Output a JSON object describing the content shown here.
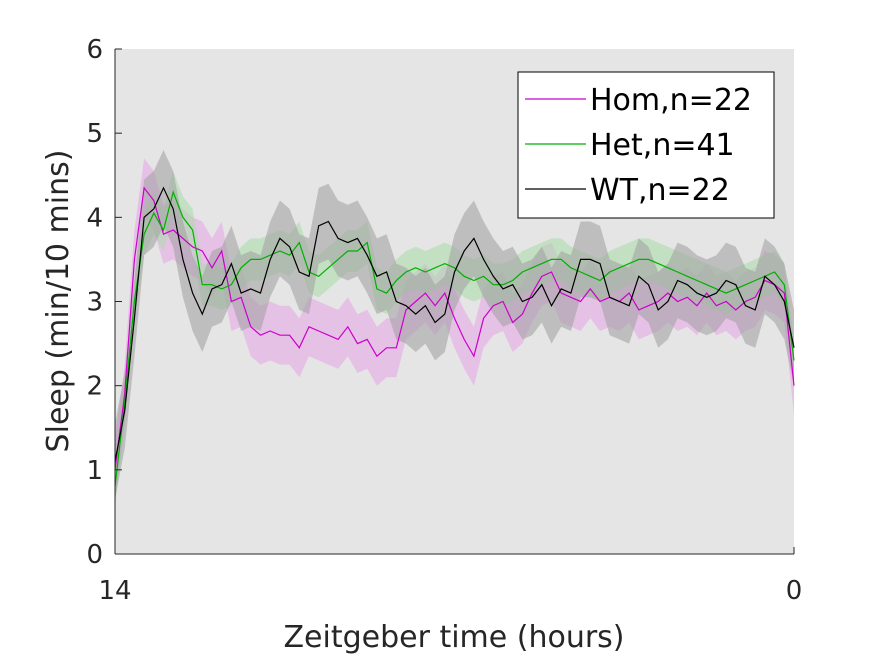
{
  "chart_data": {
    "type": "line",
    "title": "",
    "xlabel": "Zeitgeber time (hours)",
    "ylabel": "Sleep (min/10 mins)",
    "xlim": [
      14,
      0
    ],
    "ylim": [
      0,
      6
    ],
    "x_tick_labels": [
      "14",
      "0"
    ],
    "y_tick_labels": [
      "0",
      "1",
      "2",
      "3",
      "4",
      "5",
      "6"
    ],
    "y_ticks": [
      0,
      1,
      2,
      3,
      4,
      5,
      6
    ],
    "grid": false,
    "legend_position": "top-right",
    "plot_background": "#e5e5e5",
    "series": [
      {
        "name": "Hom,n=22",
        "color": "#cc00cc",
        "band_color": "#e8a4e8",
        "x": [
          14.0,
          13.8,
          13.6,
          13.4,
          13.2,
          13.0,
          12.8,
          12.6,
          12.4,
          12.2,
          12.0,
          11.8,
          11.6,
          11.4,
          11.2,
          11.0,
          10.8,
          10.6,
          10.4,
          10.2,
          10.0,
          9.8,
          9.6,
          9.4,
          9.2,
          9.0,
          8.8,
          8.6,
          8.4,
          8.2,
          8.0,
          7.8,
          7.6,
          7.4,
          7.2,
          7.0,
          6.8,
          6.6,
          6.4,
          6.2,
          6.0,
          5.8,
          5.6,
          5.4,
          5.2,
          5.0,
          4.8,
          4.6,
          4.4,
          4.2,
          4.0,
          3.8,
          3.6,
          3.4,
          3.2,
          3.0,
          2.8,
          2.6,
          2.4,
          2.2,
          2.0,
          1.8,
          1.6,
          1.4,
          1.2,
          1.0,
          0.8,
          0.6,
          0.4,
          0.2,
          0.0
        ],
        "values": [
          1.0,
          1.9,
          3.5,
          4.35,
          4.2,
          3.8,
          3.85,
          3.75,
          3.65,
          3.6,
          3.4,
          3.6,
          3.0,
          3.05,
          2.7,
          2.6,
          2.65,
          2.6,
          2.6,
          2.45,
          2.7,
          2.65,
          2.6,
          2.55,
          2.7,
          2.5,
          2.55,
          2.35,
          2.45,
          2.45,
          2.9,
          3.0,
          3.1,
          2.95,
          3.1,
          2.8,
          2.55,
          2.35,
          2.8,
          2.95,
          3.0,
          2.75,
          2.85,
          3.1,
          3.3,
          3.35,
          3.1,
          3.05,
          3.0,
          3.15,
          3.0,
          3.05,
          3.0,
          3.1,
          2.9,
          2.95,
          3.0,
          3.1,
          3.0,
          3.05,
          2.95,
          3.1,
          2.95,
          3.0,
          2.9,
          3.0,
          3.05,
          3.25,
          3.2,
          3.1,
          2.0
        ],
        "band_halfwidth": 0.35
      },
      {
        "name": "Het,n=41",
        "color": "#00b000",
        "band_color": "#a8dca8",
        "x": [
          14.0,
          13.8,
          13.6,
          13.4,
          13.2,
          13.0,
          12.8,
          12.6,
          12.4,
          12.2,
          12.0,
          11.8,
          11.6,
          11.4,
          11.2,
          11.0,
          10.8,
          10.6,
          10.4,
          10.2,
          10.0,
          9.8,
          9.6,
          9.4,
          9.2,
          9.0,
          8.8,
          8.6,
          8.4,
          8.2,
          8.0,
          7.8,
          7.6,
          7.4,
          7.2,
          7.0,
          6.8,
          6.6,
          6.4,
          6.2,
          6.0,
          5.8,
          5.6,
          5.4,
          5.2,
          5.0,
          4.8,
          4.6,
          4.4,
          4.2,
          4.0,
          3.8,
          3.6,
          3.4,
          3.2,
          3.0,
          2.8,
          2.6,
          2.4,
          2.2,
          2.0,
          1.8,
          1.6,
          1.4,
          1.2,
          1.0,
          0.8,
          0.6,
          0.4,
          0.2,
          0.0
        ],
        "values": [
          0.8,
          1.8,
          3.0,
          3.8,
          4.05,
          3.85,
          4.3,
          4.0,
          3.85,
          3.2,
          3.2,
          3.15,
          3.2,
          3.4,
          3.5,
          3.5,
          3.55,
          3.6,
          3.55,
          3.7,
          3.35,
          3.3,
          3.4,
          3.5,
          3.6,
          3.6,
          3.7,
          3.15,
          3.1,
          3.25,
          3.35,
          3.4,
          3.35,
          3.4,
          3.45,
          3.4,
          3.3,
          3.25,
          3.3,
          3.2,
          3.2,
          3.25,
          3.35,
          3.4,
          3.45,
          3.5,
          3.5,
          3.4,
          3.35,
          3.3,
          3.25,
          3.35,
          3.4,
          3.45,
          3.5,
          3.5,
          3.45,
          3.4,
          3.35,
          3.3,
          3.25,
          3.2,
          3.15,
          3.1,
          3.15,
          3.2,
          3.25,
          3.3,
          3.35,
          3.2,
          2.3
        ],
        "band_halfwidth": 0.25
      },
      {
        "name": "WT,n=22",
        "color": "#000000",
        "band_color": "#9e9e9e",
        "x": [
          14.0,
          13.8,
          13.6,
          13.4,
          13.2,
          13.0,
          12.8,
          12.6,
          12.4,
          12.2,
          12.0,
          11.8,
          11.6,
          11.4,
          11.2,
          11.0,
          10.8,
          10.6,
          10.4,
          10.2,
          10.0,
          9.8,
          9.6,
          9.4,
          9.2,
          9.0,
          8.8,
          8.6,
          8.4,
          8.2,
          8.0,
          7.8,
          7.6,
          7.4,
          7.2,
          7.0,
          6.8,
          6.6,
          6.4,
          6.2,
          6.0,
          5.8,
          5.6,
          5.4,
          5.2,
          5.0,
          4.8,
          4.6,
          4.4,
          4.2,
          4.0,
          3.8,
          3.6,
          3.4,
          3.2,
          3.0,
          2.8,
          2.6,
          2.4,
          2.2,
          2.0,
          1.8,
          1.6,
          1.4,
          1.2,
          1.0,
          0.8,
          0.6,
          0.4,
          0.2,
          0.0
        ],
        "values": [
          1.1,
          1.7,
          2.8,
          4.0,
          4.1,
          4.35,
          4.1,
          3.5,
          3.1,
          2.85,
          3.15,
          3.2,
          3.45,
          3.1,
          3.15,
          3.1,
          3.5,
          3.75,
          3.65,
          3.35,
          3.3,
          3.9,
          3.95,
          3.75,
          3.7,
          3.75,
          3.55,
          3.3,
          3.35,
          3.0,
          2.95,
          2.85,
          2.95,
          2.75,
          2.85,
          3.35,
          3.6,
          3.75,
          3.5,
          3.3,
          3.15,
          3.2,
          3.0,
          3.05,
          3.2,
          2.95,
          3.15,
          3.1,
          3.5,
          3.5,
          3.45,
          3.05,
          3.0,
          2.95,
          3.3,
          3.2,
          2.9,
          3.0,
          3.25,
          3.2,
          3.1,
          3.05,
          3.1,
          3.25,
          3.2,
          2.95,
          2.9,
          3.3,
          3.2,
          3.0,
          2.45
        ],
        "band_halfwidth": 0.45
      }
    ]
  }
}
